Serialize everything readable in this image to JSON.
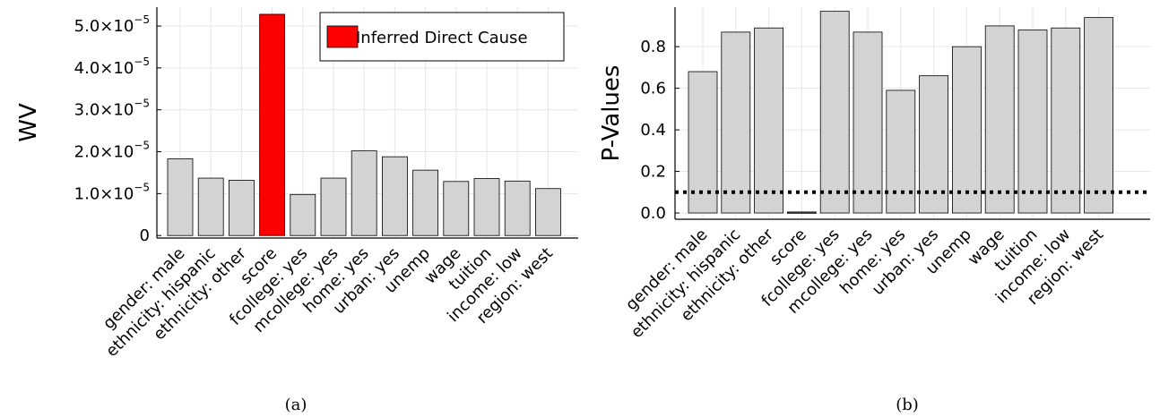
{
  "chart_data": [
    {
      "type": "bar",
      "panel_label": "(a)",
      "ylabel": "WV",
      "categories": [
        "gender: male",
        "ethnicity: hispanic",
        "ethnicity: other",
        "score",
        "fcollege: yes",
        "mcollege: yes",
        "home: yes",
        "urban: yes",
        "unemp",
        "wage",
        "tuition",
        "income: low",
        "region: west"
      ],
      "values": [
        1.83e-05,
        1.37e-05,
        1.32e-05,
        5.28e-05,
        9.8e-06,
        1.37e-05,
        2.02e-05,
        1.88e-05,
        1.56e-05,
        1.29e-05,
        1.36e-05,
        1.3e-05,
        1.12e-05
      ],
      "highlight_index": 3,
      "ylim": [
        -6e-07,
        5.45e-05
      ],
      "y_ticks": [
        {
          "value": 0,
          "label": "0"
        },
        {
          "value": 1e-05,
          "label": "1.0×10",
          "exp": "−5"
        },
        {
          "value": 2e-05,
          "label": "2.0×10",
          "exp": "−5"
        },
        {
          "value": 3e-05,
          "label": "3.0×10",
          "exp": "−5"
        },
        {
          "value": 4e-05,
          "label": "4.0×10",
          "exp": "−5"
        },
        {
          "value": 5e-05,
          "label": "5.0×10",
          "exp": "−5"
        }
      ],
      "legend": {
        "label": "Inferred Direct Cause",
        "color": "#ff0000",
        "position": "top-right"
      },
      "colors": {
        "bar": "#d3d3d3",
        "highlight": "#ff0000",
        "edge": "#000000"
      },
      "grid": true
    },
    {
      "type": "bar",
      "panel_label": "(b)",
      "ylabel": "P-Values",
      "categories": [
        "gender: male",
        "ethnicity: hispanic",
        "ethnicity: other",
        "score",
        "fcollege: yes",
        "mcollege: yes",
        "home: yes",
        "urban: yes",
        "unemp",
        "wage",
        "tuition",
        "income: low",
        "region: west"
      ],
      "values": [
        0.68,
        0.87,
        0.89,
        0.005,
        0.97,
        0.87,
        0.59,
        0.66,
        0.8,
        0.9,
        0.88,
        0.89,
        0.94
      ],
      "highlight_index": 3,
      "threshold": 0.1,
      "ylim": [
        -0.03,
        0.99
      ],
      "y_ticks": [
        {
          "value": 0.0,
          "label": "0.0"
        },
        {
          "value": 0.2,
          "label": "0.2"
        },
        {
          "value": 0.4,
          "label": "0.4"
        },
        {
          "value": 0.6,
          "label": "0.6"
        },
        {
          "value": 0.8,
          "label": "0.8"
        }
      ],
      "colors": {
        "bar": "#d3d3d3",
        "highlight": "#ff0000",
        "edge": "#000000",
        "threshold": "#000000"
      },
      "grid": true
    }
  ]
}
